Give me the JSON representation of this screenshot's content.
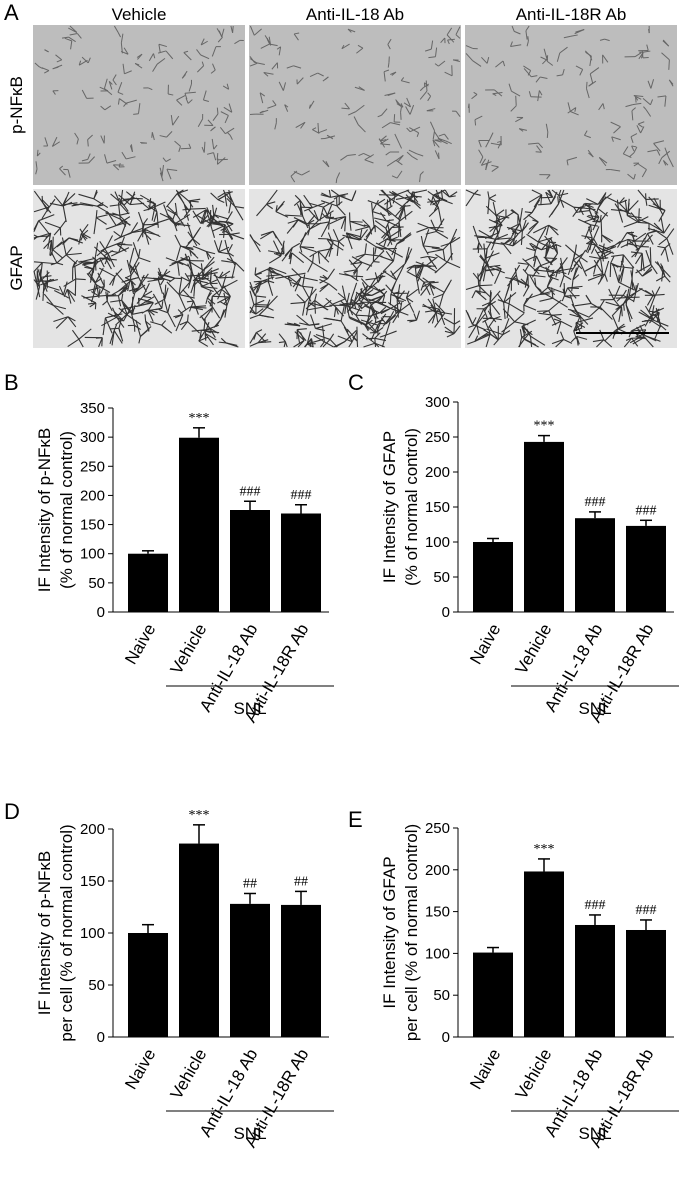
{
  "micrographs": {
    "panel": "A",
    "columns": [
      "Vehicle",
      "Anti-IL-18 Ab",
      "Anti-IL-18R Ab"
    ],
    "rows": [
      "p-NFκB",
      "GFAP"
    ]
  },
  "chart_data": [
    {
      "type": "bar",
      "panel": "B",
      "ylabel": [
        "IF Intensity of p-NFκB",
        "(% of normal control)"
      ],
      "categories": [
        "Naive",
        "Vehicle",
        "Anti-IL-18 Ab",
        "Anti-IL-18R Ab"
      ],
      "values": [
        100,
        299,
        175,
        169
      ],
      "errors": [
        5,
        17,
        15,
        15
      ],
      "annotations": [
        null,
        "***",
        "###",
        "###"
      ],
      "group_label": "SNL",
      "color": "#000000",
      "ylim": [
        0,
        350
      ],
      "yticks": [
        0,
        50,
        100,
        150,
        200,
        250,
        300,
        350
      ]
    },
    {
      "type": "bar",
      "panel": "C",
      "ylabel": [
        "IF Intensity of GFAP",
        "(% of normal control)"
      ],
      "categories": [
        "Naive",
        "Vehicle",
        "Anti-IL-18 Ab",
        "Anti-IL-18R Ab"
      ],
      "values": [
        100,
        243,
        134,
        123
      ],
      "errors": [
        5,
        9,
        9,
        8
      ],
      "annotations": [
        null,
        "***",
        "###",
        "###"
      ],
      "group_label": "SNL",
      "color": "#000000",
      "ylim": [
        0,
        300
      ],
      "yticks": [
        0,
        50,
        100,
        150,
        200,
        250,
        300
      ]
    },
    {
      "type": "bar",
      "panel": "D",
      "ylabel": [
        "IF Intensity of p-NFκB",
        "per cell (% of normal control)"
      ],
      "categories": [
        "Naive",
        "Vehicle",
        "Anti-IL-18 Ab",
        "Anti-IL-18R Ab"
      ],
      "values": [
        100,
        186,
        128,
        127
      ],
      "errors": [
        8,
        18,
        10,
        13
      ],
      "annotations": [
        null,
        "***",
        "##",
        "##"
      ],
      "group_label": "SNL",
      "color": "#000000",
      "ylim": [
        0,
        200
      ],
      "yticks": [
        0,
        50,
        100,
        150,
        200
      ]
    },
    {
      "type": "bar",
      "panel": "E",
      "ylabel": [
        "IF Intensity of GFAP",
        "per cell (% of normal control)"
      ],
      "categories": [
        "Naive",
        "Vehicle",
        "Anti-IL-18 Ab",
        "Anti-IL-18R Ab"
      ],
      "values": [
        101,
        198,
        134,
        128
      ],
      "errors": [
        6,
        15,
        12,
        12
      ],
      "annotations": [
        null,
        "***",
        "###",
        "###"
      ],
      "group_label": "SNL",
      "color": "#000000",
      "ylim": [
        0,
        250
      ],
      "yticks": [
        0,
        50,
        100,
        150,
        200,
        250
      ]
    }
  ]
}
